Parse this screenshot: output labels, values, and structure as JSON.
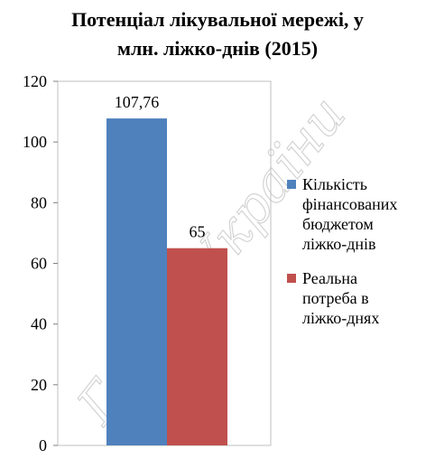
{
  "chart_data": {
    "type": "bar",
    "title_lines": [
      "Потенціал лікувальної мережі, у",
      "млн. ліжко-днів (2015)"
    ],
    "categories": [
      ""
    ],
    "series": [
      {
        "name": "Кількість фінансованих бюджетом ліжко-днів",
        "name_lines": [
          "Кількість",
          "фінансованих",
          "бюджетом",
          "ліжко-днів"
        ],
        "values": [
          107.76
        ],
        "data_labels": [
          "107,76"
        ],
        "color": "#4F81BD"
      },
      {
        "name": "Реальна потреба в ліжко-днях",
        "name_lines": [
          "Реальна",
          "потреба в",
          "ліжко-днях"
        ],
        "values": [
          65
        ],
        "data_labels": [
          "65"
        ],
        "color": "#C0504D"
      }
    ],
    "ylim": [
      0,
      120
    ],
    "yticks": [
      "0",
      "20",
      "40",
      "60",
      "80",
      "100",
      "120"
    ],
    "xlabel": "",
    "ylabel": "",
    "grid": false,
    "legend": "right"
  },
  "watermark": "Голос України"
}
